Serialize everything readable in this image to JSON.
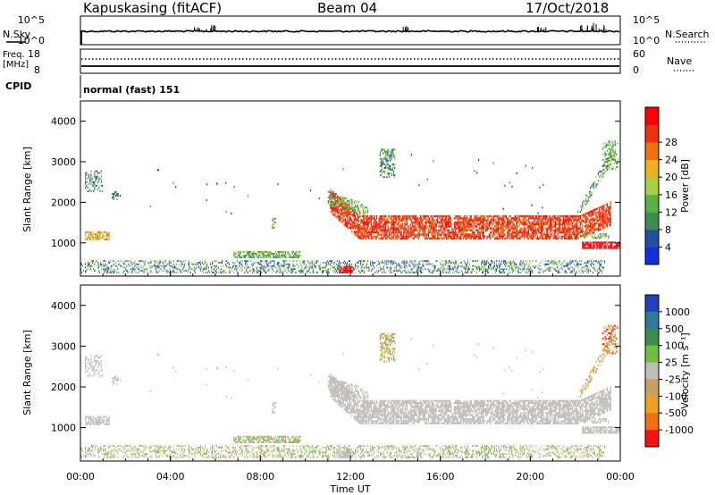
{
  "header": {
    "station": "Kapuskasing (fitACF)",
    "beam": "Beam 04",
    "date": "17/Oct/2018"
  },
  "noise_panel": {
    "left_label": "N.Sky",
    "right_label": "N.Search",
    "left_ticks": [
      "10^5",
      "10^0"
    ],
    "right_ticks": [
      "10^5",
      "10^0"
    ]
  },
  "freq_panel": {
    "left_label_line1": "Freq.",
    "left_label_line2": "[MHz]",
    "right_label": "Nave",
    "left_ticks": [
      "18",
      "8"
    ],
    "right_ticks": [
      "60",
      "0"
    ]
  },
  "cpid_panel": {
    "label": "CPID",
    "text": "normal (fast) 151"
  },
  "colors": {
    "power": [
      "#1030e0",
      "#2050a0",
      "#3c8c50",
      "#5ab040",
      "#a8d040",
      "#f0b020",
      "#f07010",
      "#f03010",
      "#ff0000"
    ],
    "velocity": [
      "#2040c0",
      "#2e7a9a",
      "#3c8c50",
      "#70c040",
      "#bebeb6",
      "#c8a060",
      "#f0a020",
      "#f07010",
      "#ff1010"
    ]
  },
  "chart_data": [
    {
      "type": "heatmap",
      "title": "",
      "quantity": "Power",
      "ylabel": "Slant Range [km]",
      "xlabel": "",
      "ylim": [
        180,
        4500
      ],
      "y_ticks": [
        "1000",
        "2000",
        "3000",
        "4000"
      ],
      "colorbar_label": "Power [dB]",
      "colorbar_ticks": [
        "4",
        "8",
        "12",
        "16",
        "20",
        "24",
        "28"
      ],
      "colorbar_range": [
        0,
        30
      ]
    },
    {
      "type": "heatmap",
      "title": "",
      "quantity": "Velocity",
      "ylabel": "Slant Range [km]",
      "xlabel": "Time UT",
      "ylim": [
        180,
        4500
      ],
      "y_ticks": [
        "1000",
        "2000",
        "3000",
        "4000"
      ],
      "x_ticks": [
        "00:00",
        "04:00",
        "08:00",
        "12:00",
        "16:00",
        "20:00",
        "00:00"
      ],
      "xlim_hours": [
        0,
        24
      ],
      "colorbar_label": "Velocity [m s⁻¹]",
      "colorbar_ticks": [
        "1000",
        "500",
        "100",
        "25",
        "-25",
        "-100",
        "-500",
        "-1000"
      ]
    }
  ]
}
